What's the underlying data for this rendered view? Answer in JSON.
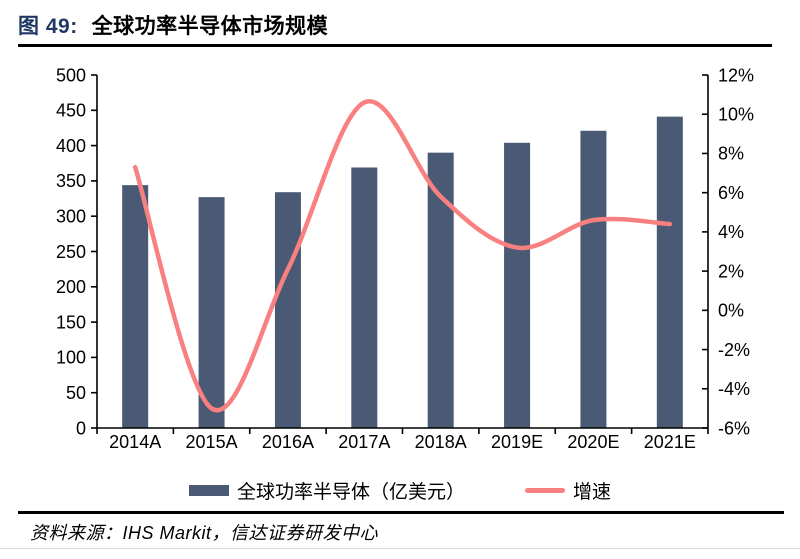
{
  "header": {
    "figure_label": "图 49:",
    "title": "全球功率半导体市场规模"
  },
  "colors": {
    "figure_label": "#1F3864",
    "bar": "#4A5A75",
    "line": "#F98080",
    "axis": "#000000"
  },
  "chart_data": {
    "type": "bar",
    "subtype": "combo-bar-line",
    "title": "全球功率半导体市场规模",
    "categories": [
      "2014A",
      "2015A",
      "2016A",
      "2017A",
      "2018A",
      "2019E",
      "2020E",
      "2021E"
    ],
    "series": [
      {
        "name": "全球功率半导体（亿美元）",
        "type": "bar",
        "axis": "left",
        "color": "#4A5A75",
        "values": [
          344,
          327,
          334,
          369,
          390,
          404,
          421,
          441
        ]
      },
      {
        "name": "增速",
        "type": "line",
        "axis": "right",
        "color": "#F98080",
        "values": [
          7.3,
          -5.0,
          2.1,
          10.6,
          5.8,
          3.2,
          4.6,
          4.4
        ]
      }
    ],
    "left_axis": {
      "min": 0,
      "max": 500,
      "ticks": [
        0,
        50,
        100,
        150,
        200,
        250,
        300,
        350,
        400,
        450,
        500
      ],
      "suffix": ""
    },
    "right_axis": {
      "min": -6,
      "max": 12,
      "ticks": [
        -6,
        -4,
        -2,
        0,
        2,
        4,
        6,
        8,
        10,
        12
      ],
      "suffix": "%"
    },
    "grid": false,
    "legend_position": "bottom",
    "line_smooth": true
  },
  "legend": {
    "bar_label": "全球功率半导体（亿美元）",
    "line_label": "增速"
  },
  "footer": {
    "source_text": "资料来源：IHS Markit，信达证券研发中心"
  }
}
